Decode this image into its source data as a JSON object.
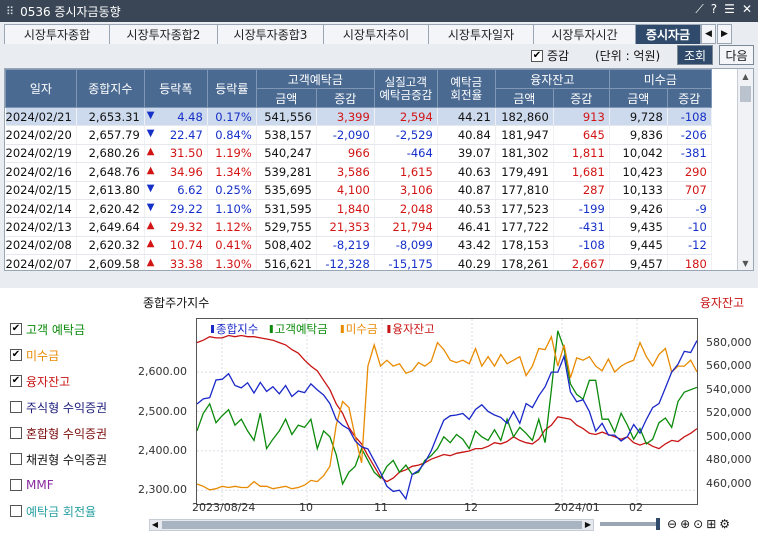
{
  "window": {
    "title": "0536 증시자금동향",
    "grip_icon": "grid-icon",
    "buttons": [
      "pin-icon",
      "help-icon",
      "menu-icon",
      "close-icon"
    ]
  },
  "tabs": [
    "시장투자종합",
    "시장투자종합2",
    "시장투자종합3",
    "시장투자추이",
    "시장투자일자",
    "시장투자시간",
    "증시자금"
  ],
  "active_tab": 6,
  "options": {
    "check_label": "증감",
    "checked": true,
    "unit": "(단위 : 억원)",
    "search": "조회",
    "next": "다음"
  },
  "table": {
    "headers": [
      "일자",
      "종합지수",
      "등락폭",
      "등락률",
      "고객예탁금",
      "실질고객\n예탁금증감",
      "예탁금\n회전율",
      "융자잔고",
      "미수금"
    ],
    "sub": [
      "금액",
      "증감",
      "금액",
      "증감",
      "금액",
      "증감"
    ],
    "rows": [
      [
        "2024/02/21",
        "2,653.31",
        "down",
        "4.48",
        "0.17%",
        "541,556",
        "3,399",
        "2,594",
        "44.21",
        "182,860",
        "913",
        "9,728",
        "-108"
      ],
      [
        "2024/02/20",
        "2,657.79",
        "down",
        "22.47",
        "0.84%",
        "538,157",
        "-2,090",
        "-2,529",
        "40.84",
        "181,947",
        "645",
        "9,836",
        "-206"
      ],
      [
        "2024/02/19",
        "2,680.26",
        "up",
        "31.50",
        "1.19%",
        "540,247",
        "966",
        "-464",
        "39.07",
        "181,302",
        "1,811",
        "10,042",
        "-381"
      ],
      [
        "2024/02/16",
        "2,648.76",
        "up",
        "34.96",
        "1.34%",
        "539,281",
        "3,586",
        "1,615",
        "40.63",
        "179,491",
        "1,681",
        "10,423",
        "290"
      ],
      [
        "2024/02/15",
        "2,613.80",
        "down",
        "6.62",
        "0.25%",
        "535,695",
        "4,100",
        "3,106",
        "40.87",
        "177,810",
        "287",
        "10,133",
        "707"
      ],
      [
        "2024/02/14",
        "2,620.42",
        "down",
        "29.22",
        "1.10%",
        "531,595",
        "1,840",
        "2,048",
        "40.53",
        "177,523",
        "-199",
        "9,426",
        "-9"
      ],
      [
        "2024/02/13",
        "2,649.64",
        "up",
        "29.32",
        "1.12%",
        "529,755",
        "21,353",
        "21,794",
        "46.41",
        "177,722",
        "-431",
        "9,435",
        "-10"
      ],
      [
        "2024/02/08",
        "2,620.32",
        "up",
        "10.74",
        "0.41%",
        "508,402",
        "-8,219",
        "-8,099",
        "43.42",
        "178,153",
        "-108",
        "9,445",
        "-12"
      ],
      [
        "2024/02/07",
        "2,609.58",
        "up",
        "33.38",
        "1.30%",
        "516,621",
        "-12,328",
        "-15,175",
        "40.29",
        "178,261",
        "2,667",
        "9,457",
        "180"
      ]
    ]
  },
  "legend": [
    {
      "label": "고객 예탁금",
      "checked": true,
      "color": "#0a8a0a"
    },
    {
      "label": "미수금",
      "checked": true,
      "color": "#e88a00"
    },
    {
      "label": "융자잔고",
      "checked": true,
      "color": "#c81414"
    },
    {
      "label": "주식형 수익증권",
      "checked": false,
      "color": "#1a1a7a"
    },
    {
      "label": "혼합형 수익증권",
      "checked": false,
      "color": "#7a0a0a"
    },
    {
      "label": "채권형 수익증권",
      "checked": false,
      "color": "#111111"
    },
    {
      "label": "MMF",
      "checked": false,
      "color": "#8a2aa0"
    },
    {
      "label": "예탁금 회전율",
      "checked": false,
      "color": "#2aa0a0"
    }
  ],
  "chart_data": {
    "type": "line",
    "title_left": "종합주가지수",
    "title_right": "융자잔고",
    "legend": [
      "종합지수",
      "고객예탁금",
      "미수금",
      "융자잔고"
    ],
    "y_left": {
      "ticks": [
        "2,600.00",
        "2,500.00",
        "2,400.00",
        "2,300.00"
      ],
      "values": [
        2600,
        2500,
        2400,
        2300
      ],
      "range": [
        2265,
        2735
      ]
    },
    "y_right": {
      "ticks": [
        "580,000",
        "560,000",
        "540,000",
        "520,000",
        "500,000",
        "480,000",
        "460,000"
      ],
      "values": [
        580000,
        560000,
        540000,
        520000,
        500000,
        480000,
        460000
      ],
      "range": [
        443000,
        600000
      ]
    },
    "x_ticks": [
      "2023/08/24",
      "10",
      "11",
      "12",
      "2024/01",
      "02"
    ],
    "x_tick_pos": [
      0.05,
      0.22,
      0.37,
      0.55,
      0.73,
      0.88
    ],
    "series": [
      {
        "name": "종합지수",
        "color": "#1a28c8",
        "axis": "left",
        "values": [
          2519,
          2532,
          2535,
          2580,
          2582,
          2596,
          2566,
          2560,
          2573,
          2547,
          2574,
          2551,
          2563,
          2545,
          2566,
          2538,
          2552,
          2548,
          2570,
          2555,
          2542,
          2520,
          2480,
          2465,
          2455,
          2425,
          2410,
          2405,
          2375,
          2345,
          2310,
          2297,
          2300,
          2278,
          2340,
          2350,
          2370,
          2400,
          2440,
          2478,
          2489,
          2491,
          2495,
          2480,
          2505,
          2517,
          2500,
          2491,
          2485,
          2470,
          2500,
          2470,
          2520,
          2510,
          2540,
          2563,
          2600,
          2600,
          2640,
          2550,
          2525,
          2530,
          2500,
          2450,
          2470,
          2440,
          2440,
          2425,
          2436,
          2467,
          2445,
          2480,
          2510,
          2520,
          2560,
          2600,
          2620,
          2653,
          2650,
          2680
        ]
      },
      {
        "name": "고객예탁금",
        "color": "#0a8a0a",
        "axis": "right",
        "values": [
          505000,
          520000,
          528000,
          512000,
          518000,
          523000,
          510000,
          515000,
          505000,
          497000,
          520000,
          490000,
          498000,
          505000,
          515000,
          502000,
          510000,
          508000,
          515000,
          490000,
          505000,
          500000,
          485000,
          460000,
          470000,
          475000,
          490000,
          480000,
          470000,
          465000,
          475000,
          480000,
          470000,
          476000,
          468000,
          470000,
          480000,
          484000,
          490000,
          500000,
          495000,
          502000,
          498000,
          490000,
          505000,
          500000,
          497000,
          506000,
          497000,
          515000,
          500000,
          508000,
          503000,
          497000,
          515000,
          495000,
          540000,
          590000,
          575000,
          545000,
          536000,
          532000,
          548000,
          548000,
          515000,
          515000,
          504000,
          520000,
          510000,
          498000,
          507000,
          494000,
          498000,
          512000,
          516000,
          508000,
          530000,
          538000,
          540000,
          542000
        ]
      },
      {
        "name": "미수금",
        "color": "#e88a00",
        "axis": "right",
        "values": [
          460000,
          458000,
          455000,
          456000,
          458000,
          457000,
          458000,
          457000,
          457000,
          462000,
          458000,
          458000,
          456000,
          457000,
          458000,
          456000,
          457000,
          459000,
          463000,
          462000,
          467000,
          475000,
          510000,
          530000,
          525000,
          500000,
          478000,
          560000,
          578000,
          560000,
          565000,
          560000,
          562000,
          554000,
          556000,
          563000,
          560000,
          564000,
          580000,
          574000,
          565000,
          563000,
          565000,
          562000,
          575000,
          560000,
          568000,
          560000,
          570000,
          562000,
          565000,
          568000,
          552000,
          560000,
          575000,
          574000,
          585000,
          560000,
          578000,
          550000,
          567000,
          565000,
          568000,
          560000,
          556000,
          566000,
          555000,
          560000,
          563000,
          565000,
          580000,
          568000,
          560000,
          570000,
          575000,
          555000,
          560000,
          560000,
          565000,
          555000
        ]
      },
      {
        "name": "융자잔고",
        "color": "#c81414",
        "axis": "right",
        "values": [
          580000,
          582000,
          585000,
          584000,
          584000,
          586000,
          585000,
          586000,
          585000,
          585000,
          584000,
          583000,
          582000,
          580000,
          578000,
          574000,
          571000,
          565000,
          560000,
          556000,
          548000,
          540000,
          528000,
          520000,
          508000,
          500000,
          494000,
          484000,
          475000,
          466000,
          462000,
          465000,
          470000,
          472000,
          475000,
          476000,
          478000,
          481000,
          483000,
          485000,
          484000,
          486000,
          487000,
          488000,
          490000,
          490000,
          492000,
          495000,
          494000,
          496000,
          500000,
          497000,
          495000,
          494000,
          498000,
          506000,
          510000,
          517000,
          516000,
          515000,
          510000,
          507000,
          503000,
          502000,
          504000,
          502000,
          500000,
          498000,
          500000,
          495000,
          493000,
          495000,
          492000,
          490000,
          494000,
          497000,
          496000,
          500000,
          503000,
          507000
        ]
      }
    ]
  },
  "tools": [
    "zoom-out-icon",
    "zoom-in-icon",
    "zoom-reset-icon",
    "zoom-area-icon",
    "settings-icon"
  ]
}
